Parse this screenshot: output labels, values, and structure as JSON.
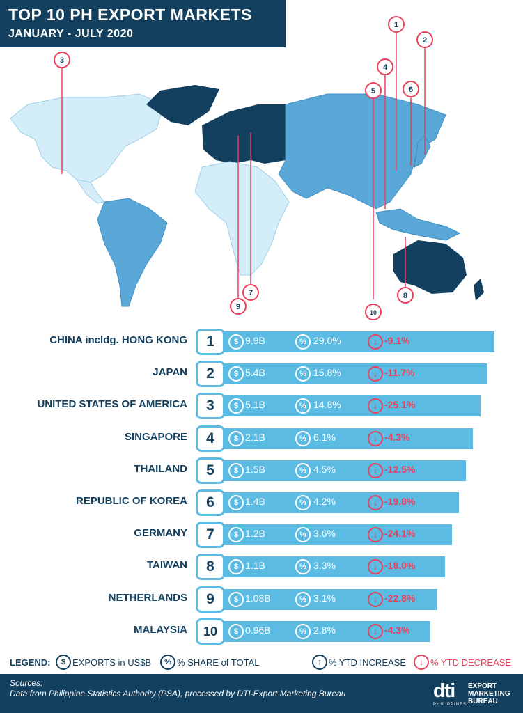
{
  "header": {
    "title": "TOP 10 PH EXPORT MARKETS",
    "subtitle": "JANUARY - JULY 2020"
  },
  "colors": {
    "navy": "#13405e",
    "blue": "#5bbbe3",
    "mid": "#5aa8d8",
    "light": "#d4eef9",
    "red": "#e8415d"
  },
  "chart_data": {
    "type": "bar",
    "categories": [
      "CHINA incldg. HONG KONG",
      "JAPAN",
      "UNITED STATES OF AMERICA",
      "SINGAPORE",
      "THAILAND",
      "REPUBLIC OF KOREA",
      "GERMANY",
      "TAIWAN",
      "NETHERLANDS",
      "MALAYSIA"
    ],
    "ranks": [
      "1",
      "2",
      "3",
      "4",
      "5",
      "6",
      "7",
      "8",
      "9",
      "10"
    ],
    "values": [
      9.9,
      5.4,
      5.1,
      2.1,
      1.5,
      1.4,
      1.2,
      1.1,
      1.08,
      0.96
    ],
    "value_labels": [
      "9.9B",
      "5.4B",
      "5.1B",
      "2.1B",
      "1.5B",
      "1.4B",
      "1.2B",
      "1.1B",
      "1.08B",
      "0.96B"
    ],
    "share_labels": [
      "29.0%",
      "15.8%",
      "14.8%",
      "6.1%",
      "4.5%",
      "4.2%",
      "3.6%",
      "3.3%",
      "3.1%",
      "2.8%"
    ],
    "ytd_labels": [
      "-9.1%",
      "-11.7%",
      "-25.1%",
      "-4.3%",
      "-12.5%",
      "-19.8%",
      "-24.1%",
      "-18.0%",
      "-22.8%",
      "-4.3%"
    ]
  },
  "map_markers": [
    "1",
    "2",
    "3",
    "4",
    "5",
    "6",
    "7",
    "8",
    "9",
    "10"
  ],
  "legend": {
    "label": "LEGEND:",
    "exports": "EXPORTS in US$B",
    "share": "% SHARE of TOTAL",
    "increase": "% YTD INCREASE",
    "decrease": "% YTD DECREASE"
  },
  "icons": {
    "dollar": "$",
    "percent": "%",
    "up": "↑",
    "down": "↓"
  },
  "footer": {
    "sources_label": "Sources:",
    "sources_text": "Data from Philippine Statistics Authority (PSA), processed by DTI-Export Marketing Bureau",
    "logo": "dti",
    "logo_sub": "PHILIPPINES",
    "emb_line1": "EXPORT",
    "emb_line2": "MARKETING",
    "emb_line3": "BUREAU"
  }
}
